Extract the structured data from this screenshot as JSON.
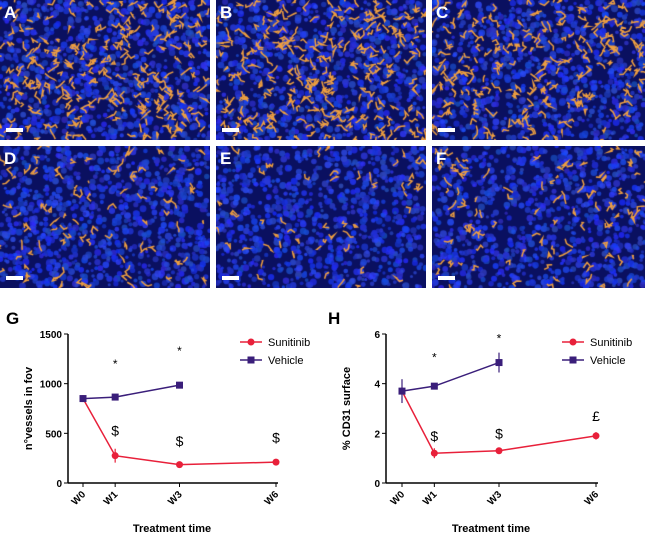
{
  "micrographs": [
    {
      "label": "A",
      "density": 1.0
    },
    {
      "label": "B",
      "density": 1.1
    },
    {
      "label": "C",
      "density": 0.9
    },
    {
      "label": "D",
      "density": 0.35
    },
    {
      "label": "E",
      "density": 0.2
    },
    {
      "label": "F",
      "density": 0.4
    }
  ],
  "colors": {
    "sunitinib": "#e8203a",
    "vehicle": "#3a1e7a",
    "nuclei": "#1a2fd0",
    "vessels": "#f0a040"
  },
  "chart_data": [
    {
      "panel_label": "G",
      "type": "line",
      "xlabel": "Treatment time",
      "ylabel": "n°vessels in fov",
      "categories": [
        "W0",
        "W1",
        "W3",
        "W6"
      ],
      "x": [
        0,
        1,
        3,
        6
      ],
      "ylim": [
        0,
        1500
      ],
      "yticks": [
        0,
        500,
        1000,
        1500
      ],
      "grid": false,
      "legend": "top-right",
      "series": [
        {
          "name": "Sunitinib",
          "marker": "circle",
          "x": [
            0,
            1,
            3,
            6
          ],
          "values": [
            850,
            275,
            185,
            210
          ],
          "errors": [
            10,
            70,
            15,
            30
          ]
        },
        {
          "name": "Vehicle",
          "marker": "square",
          "x": [
            0,
            1,
            3
          ],
          "values": [
            850,
            865,
            985
          ],
          "errors": [
            10,
            25,
            30
          ]
        }
      ],
      "annotations": [
        {
          "text": "*",
          "x": 1,
          "y": 1160
        },
        {
          "text": "*",
          "x": 3,
          "y": 1290
        },
        {
          "text": "$",
          "x": 1,
          "y": 480
        },
        {
          "text": "$",
          "x": 3,
          "y": 370
        },
        {
          "text": "$",
          "x": 6,
          "y": 410
        }
      ]
    },
    {
      "panel_label": "H",
      "type": "line",
      "xlabel": "Treatment time",
      "ylabel": "% CD31 surface",
      "categories": [
        "W0",
        "W1",
        "W3",
        "W6"
      ],
      "x": [
        0,
        1,
        3,
        6
      ],
      "ylim": [
        0,
        6
      ],
      "yticks": [
        0,
        2,
        4,
        6
      ],
      "grid": false,
      "legend": "top-right",
      "series": [
        {
          "name": "Sunitinib",
          "marker": "circle",
          "x": [
            0,
            1,
            3,
            6
          ],
          "values": [
            3.7,
            1.2,
            1.3,
            1.9
          ],
          "errors": [
            0.1,
            0.2,
            0.05,
            0.15
          ]
        },
        {
          "name": "Vehicle",
          "marker": "square",
          "x": [
            0,
            1,
            3
          ],
          "values": [
            3.7,
            3.9,
            4.85
          ],
          "errors": [
            0.48,
            0.1,
            0.4
          ]
        }
      ],
      "annotations": [
        {
          "text": "*",
          "x": 1,
          "y": 4.9
        },
        {
          "text": "*",
          "x": 3,
          "y": 5.65
        },
        {
          "text": "$",
          "x": 1,
          "y": 1.7
        },
        {
          "text": "$",
          "x": 3,
          "y": 1.8
        },
        {
          "text": "£",
          "x": 6,
          "y": 2.5
        }
      ]
    }
  ]
}
